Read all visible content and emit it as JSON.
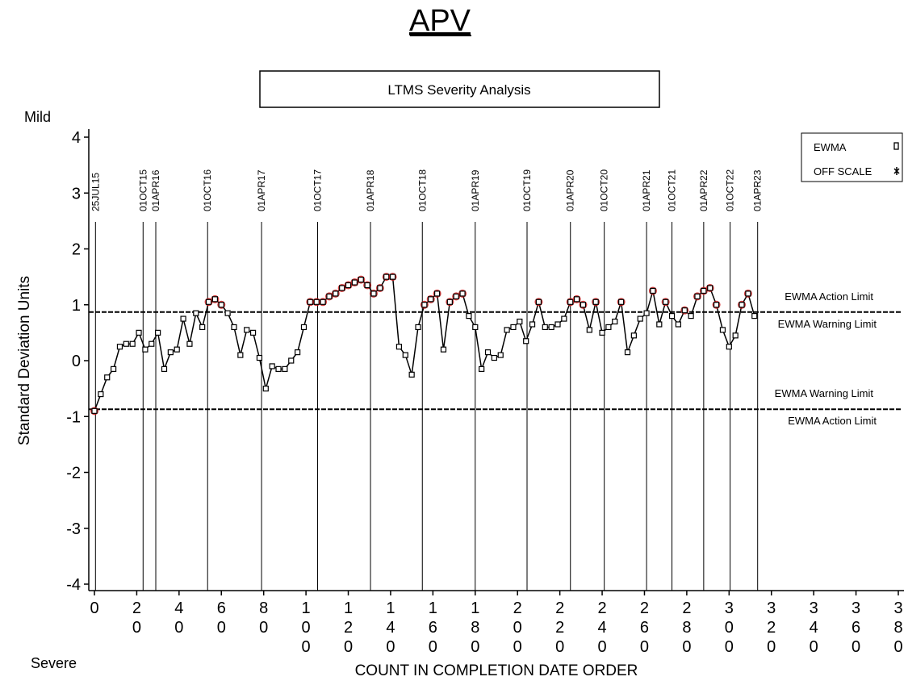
{
  "header": {
    "title": "APV"
  },
  "chart_data": {
    "type": "line",
    "title": "LTMS Severity Analysis",
    "top_label": "Mild",
    "bottom_label": "Severe",
    "x_label": "COUNT IN COMPLETION DATE ORDER",
    "y_label": "Standard Deviation Units",
    "xlim": [
      0,
      380
    ],
    "xticks": [
      0,
      20,
      40,
      60,
      80,
      100,
      120,
      140,
      160,
      180,
      200,
      220,
      240,
      260,
      280,
      300,
      320,
      340,
      360,
      380
    ],
    "ylim": [
      -4,
      4
    ],
    "yticks": [
      -4,
      -3,
      -2,
      -1,
      0,
      1,
      2,
      3,
      4
    ],
    "x": [
      0,
      3,
      6,
      9,
      12,
      15,
      18,
      21,
      24,
      27,
      30,
      33,
      36,
      39,
      42,
      45,
      48,
      51,
      54,
      57,
      60,
      63,
      66,
      69,
      72,
      75,
      78,
      81,
      84,
      87,
      90,
      93,
      96,
      99,
      102,
      105,
      108,
      111,
      114,
      117,
      120,
      123,
      126,
      129,
      132,
      135,
      138,
      141,
      144,
      147,
      150,
      153,
      156,
      159,
      162,
      165,
      168,
      171,
      174,
      177,
      180,
      183,
      186,
      189,
      192,
      195,
      198,
      201,
      204,
      207,
      210,
      213,
      216,
      219,
      222,
      225,
      228,
      231,
      234,
      237,
      240,
      243,
      246,
      249,
      252,
      255,
      258,
      261,
      264,
      267,
      270,
      273,
      276,
      279,
      282,
      285,
      288,
      291,
      294,
      297,
      300,
      303,
      306,
      309,
      312
    ],
    "series": [
      {
        "name": "EWMA",
        "color": "#000000",
        "highlight_color": "#cc1111",
        "values": [
          -0.9,
          -0.6,
          -0.3,
          -0.15,
          0.25,
          0.3,
          0.3,
          0.5,
          0.2,
          0.3,
          0.5,
          -0.15,
          0.15,
          0.2,
          0.75,
          0.3,
          0.85,
          0.6,
          1.05,
          1.1,
          1.0,
          0.85,
          0.6,
          0.1,
          0.55,
          0.5,
          0.05,
          -0.5,
          -0.1,
          -0.15,
          -0.15,
          0.0,
          0.15,
          0.6,
          1.05,
          1.05,
          1.05,
          1.15,
          1.2,
          1.3,
          1.35,
          1.4,
          1.45,
          1.35,
          1.2,
          1.3,
          1.5,
          1.5,
          0.25,
          0.1,
          -0.25,
          0.6,
          1.0,
          1.1,
          1.2,
          0.2,
          1.05,
          1.15,
          1.2,
          0.8,
          0.6,
          -0.15,
          0.15,
          0.05,
          0.1,
          0.55,
          0.6,
          0.7,
          0.35,
          0.65,
          1.05,
          0.6,
          0.6,
          0.65,
          0.75,
          1.05,
          1.1,
          1.0,
          0.55,
          1.05,
          0.5,
          0.6,
          0.7,
          1.05,
          0.15,
          0.45,
          0.75,
          0.85,
          1.25,
          0.65,
          1.05,
          0.8,
          0.65,
          0.9,
          0.8,
          1.15,
          1.25,
          1.3,
          1.0,
          0.55,
          0.25,
          0.45,
          1.0,
          1.2,
          0.8
        ]
      }
    ],
    "off_scale_label": "OFF SCALE",
    "date_markers": {
      "x": [
        0.5,
        23,
        29,
        53.5,
        79,
        105.5,
        130.5,
        155,
        180,
        204.5,
        225,
        241,
        261,
        273,
        288,
        300.5,
        313.5
      ],
      "labels": [
        "25JUL15",
        "01OCT15",
        "01APR16",
        "01OCT16",
        "01APR17",
        "01OCT17",
        "01APR18",
        "01OCT18",
        "01APR19",
        "01OCT19",
        "01APR20",
        "01OCT20",
        "01APR21",
        "01OCT21",
        "01APR22",
        "01OCT22",
        "01APR23"
      ]
    },
    "reference_lines": [
      {
        "value": 0.87,
        "label_above": "EWMA Action Limit",
        "label_below": "EWMA Warning Limit"
      },
      {
        "value": -0.87,
        "label_above": "EWMA Warning Limit",
        "label_below": "EWMA Action Limit"
      }
    ]
  }
}
